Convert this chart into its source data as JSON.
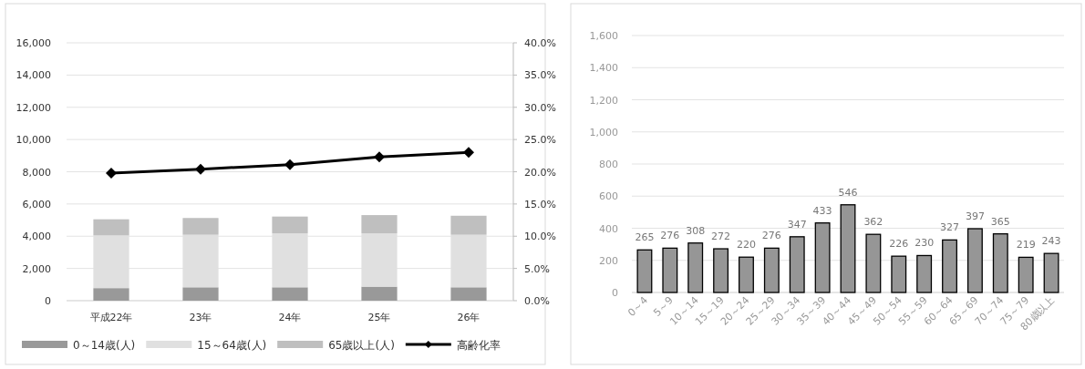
{
  "chart_data": [
    {
      "type": "bar",
      "stacked": true,
      "categories": [
        "平成22年",
        "23年",
        "24年",
        "25年",
        "26年"
      ],
      "series": [
        {
          "name": "0～14歳(人)",
          "color": "#999999",
          "values": [
            780,
            830,
            830,
            870,
            830
          ]
        },
        {
          "name": "15～64歳(人)",
          "color": "#e0e0e0",
          "values": [
            3270,
            3260,
            3350,
            3310,
            3260
          ]
        },
        {
          "name": "65歳以上(人)",
          "color": "#bfbfbf",
          "values": [
            1000,
            1040,
            1040,
            1130,
            1180
          ]
        },
        {
          "name": "高齢化率",
          "type": "line",
          "axis": "y2",
          "color": "#000000",
          "values": [
            19.8,
            20.4,
            21.1,
            22.3,
            23.0
          ]
        }
      ],
      "ylim": [
        0,
        16000
      ],
      "yticks": [
        {
          "value": 0,
          "label": "0"
        },
        {
          "value": 2000,
          "label": "2,000"
        },
        {
          "value": 4000,
          "label": "4,000"
        },
        {
          "value": 6000,
          "label": "6,000"
        },
        {
          "value": 8000,
          "label": "8,000"
        },
        {
          "value": 10000,
          "label": "10,000"
        },
        {
          "value": 12000,
          "label": "12,000"
        },
        {
          "value": 14000,
          "label": "14,000"
        },
        {
          "value": 16000,
          "label": "16,000"
        }
      ],
      "y2lim": [
        0,
        40
      ],
      "y2ticks": [
        {
          "value": 0,
          "label": "0.0%"
        },
        {
          "value": 5,
          "label": "5.0%"
        },
        {
          "value": 10,
          "label": "10.0%"
        },
        {
          "value": 15,
          "label": "15.0%"
        },
        {
          "value": 20,
          "label": "20.0%"
        },
        {
          "value": 25,
          "label": "25.0%"
        },
        {
          "value": 30,
          "label": "30.0%"
        },
        {
          "value": 35,
          "label": "35.0%"
        },
        {
          "value": 40,
          "label": "40.0%"
        }
      ],
      "grid": "y",
      "legend": "bottom",
      "marker": "diamond"
    },
    {
      "type": "bar",
      "categories": [
        "0～4",
        "5～9",
        "10～14",
        "15～19",
        "20～24",
        "25～29",
        "30～34",
        "35～39",
        "40～44",
        "45～49",
        "50～54",
        "55～59",
        "60～64",
        "65～69",
        "70～74",
        "75～79",
        "80歳以上"
      ],
      "values": [
        265,
        276,
        308,
        272,
        220,
        276,
        347,
        433,
        546,
        362,
        226,
        230,
        327,
        397,
        365,
        219,
        243
      ],
      "color": "#969696",
      "ylim": [
        0,
        1600
      ],
      "yticks": [
        {
          "value": 0,
          "label": "0"
        },
        {
          "value": 200,
          "label": "200"
        },
        {
          "value": 400,
          "label": "400"
        },
        {
          "value": 600,
          "label": "600"
        },
        {
          "value": 800,
          "label": "800"
        },
        {
          "value": 1000,
          "label": "1,000"
        },
        {
          "value": 1200,
          "label": "1,200"
        },
        {
          "value": 1400,
          "label": "1,400"
        },
        {
          "value": 1600,
          "label": "1,600"
        }
      ],
      "grid": "y",
      "data_labels": true
    }
  ]
}
